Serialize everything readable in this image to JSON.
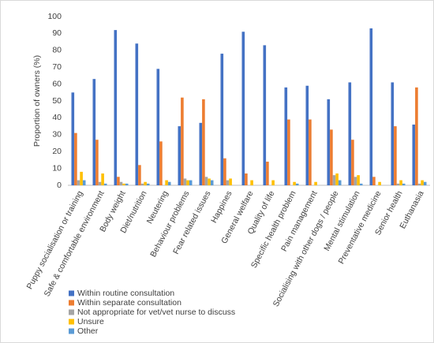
{
  "chart_data": {
    "type": "bar",
    "y_label": "Proportion of owners (%)",
    "categories": [
      "Puppy socialisation or training",
      "Safe & comfortable environment",
      "Body weight",
      "Diet/nutrition",
      "Neutering",
      "Behaviour problems",
      "Fear related issues",
      "Happines",
      "General welfare",
      "Quality of life",
      "Specific health problem",
      "Pain management",
      "Socialising with other dogs / people",
      "Mental stimulation",
      "Preventative medicine",
      "Senior health",
      "Euthanasia"
    ],
    "series": [
      {
        "name": "Within routine consultation",
        "color": "#4472c4",
        "values": [
          55,
          63,
          92,
          84,
          69,
          35,
          37,
          78,
          91,
          83,
          58,
          59,
          51,
          61,
          93,
          61,
          36
        ]
      },
      {
        "name": "Within separate consultation",
        "color": "#ed7d31",
        "values": [
          31,
          27,
          5,
          12,
          26,
          52,
          51,
          16,
          7,
          14,
          39,
          39,
          33,
          27,
          5,
          35,
          58
        ]
      },
      {
        "name": "Not appropriate for vet/vet nurse to discuss",
        "color": "#a5a5a5",
        "values": [
          3,
          2,
          2,
          1,
          0,
          4,
          5,
          3,
          0,
          0,
          0,
          0,
          6,
          5,
          0,
          1,
          1
        ]
      },
      {
        "name": "Unsure",
        "color": "#ffc000",
        "values": [
          8,
          7,
          1,
          2,
          3,
          3,
          4,
          4,
          3,
          3,
          2,
          2,
          7,
          6,
          2,
          3,
          3
        ]
      },
      {
        "name": "Other",
        "color": "#5b9bd5",
        "values": [
          3,
          1,
          1,
          1,
          2,
          3,
          3,
          0,
          0,
          0,
          1,
          0,
          3,
          1,
          0,
          1,
          2
        ]
      }
    ],
    "ylim": [
      0,
      100
    ],
    "yticks": [
      0,
      10,
      20,
      30,
      40,
      50,
      60,
      70,
      80,
      90,
      100
    ],
    "grid": false,
    "legend": "bottom-left"
  }
}
